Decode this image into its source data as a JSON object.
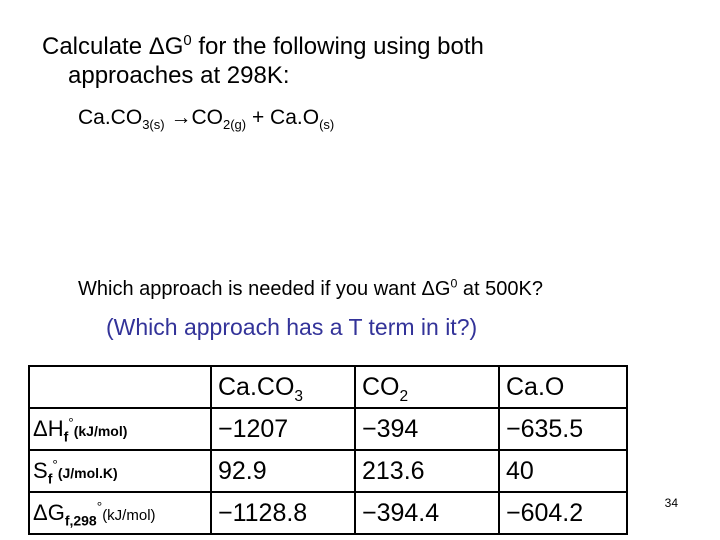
{
  "title": {
    "line1_a": "Calculate ΔG",
    "line1_sup": "0",
    "line1_b": " for the following using both",
    "line2": "approaches at 298K:"
  },
  "equation": {
    "r1": "Ca.CO",
    "r1_sub": "3(s)",
    "arrow": " →CO",
    "p1_sub": "2(g)",
    "plus": " + Ca.O",
    "p2_sub": "(s)"
  },
  "question": {
    "a": "Which approach is needed if you want ΔG",
    "sup": "0",
    "b": " at 500K?"
  },
  "hint": "(Which approach has a T term in it?)",
  "table": {
    "headers": [
      {
        "t": "Ca.CO",
        "s": "3"
      },
      {
        "t": "CO",
        "s": "2"
      },
      {
        "t": "Ca.O",
        "s": ""
      }
    ],
    "rows": [
      {
        "label": "ΔH",
        "label_sub": "f",
        "deg": "°",
        "unit": "(kJ/mol)",
        "values": [
          "−1207",
          "−394",
          "−635.5"
        ]
      },
      {
        "label": "S",
        "label_sub": "f",
        "deg": "°",
        "unit": "(J/mol.K)",
        "values": [
          "92.9",
          "213.6",
          "40"
        ]
      },
      {
        "label": "ΔG",
        "label_sub": "f,298",
        "deg": "°",
        "unit": "(kJ/mol)",
        "values": [
          "−1128.8",
          "−394.4",
          "−604.2"
        ]
      }
    ]
  },
  "page_number": "34"
}
